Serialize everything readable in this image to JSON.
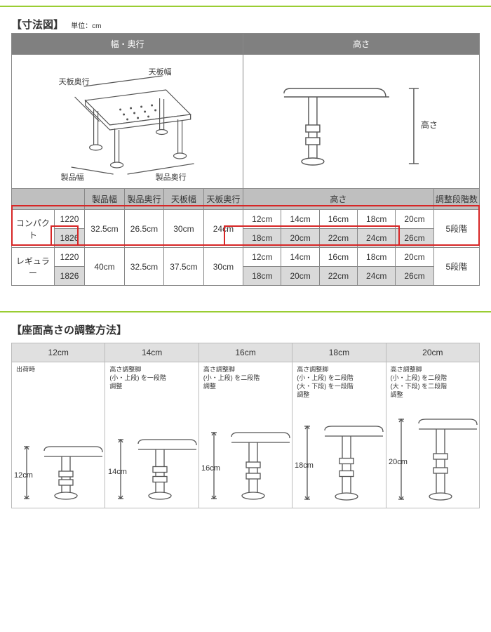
{
  "colors": {
    "accent_green": "#9acd32",
    "header_gray": "#808080",
    "subheader_gray": "#bfbfbf",
    "alt_gray": "#d9d9d9",
    "highlight_red": "#d72626",
    "border": "#888888",
    "text": "#333333"
  },
  "section1": {
    "title": "【寸法図】",
    "unit": "単位：cm",
    "top_headers": [
      "幅・奥行",
      "高さ"
    ],
    "diagram_width_labels": {
      "top_depth": "天板奥行",
      "top_width": "天板幅",
      "prod_width": "製品幅",
      "prod_depth": "製品奥行"
    },
    "diagram_height_label": "高さ",
    "col_headers": [
      "製品幅",
      "製品奥行",
      "天板幅",
      "天板奥行",
      "高さ",
      "調整段階数"
    ],
    "rows": [
      {
        "name": "コンパクト",
        "variants": [
          {
            "model": "1220",
            "heights": [
              "12cm",
              "14cm",
              "16cm",
              "18cm",
              "20cm"
            ],
            "alt": false
          },
          {
            "model": "1826",
            "heights": [
              "18cm",
              "20cm",
              "22cm",
              "24cm",
              "26cm"
            ],
            "alt": true
          }
        ],
        "dims": [
          "32.5cm",
          "26.5cm",
          "30cm",
          "24cm"
        ],
        "steps": "5段階"
      },
      {
        "name": "レギュラー",
        "variants": [
          {
            "model": "1220",
            "heights": [
              "12cm",
              "14cm",
              "16cm",
              "18cm",
              "20cm"
            ],
            "alt": false
          },
          {
            "model": "1826",
            "heights": [
              "18cm",
              "20cm",
              "22cm",
              "24cm",
              "26cm"
            ],
            "alt": true
          }
        ],
        "dims": [
          "40cm",
          "32.5cm",
          "37.5cm",
          "30cm"
        ],
        "steps": "5段階"
      }
    ]
  },
  "section2": {
    "title": "【座面高さの調整方法】",
    "panels": [
      {
        "h": "12cm",
        "desc": "出荷時",
        "legH": 60
      },
      {
        "h": "14cm",
        "desc": "高さ調整脚\n(小・上段) を一段階\n調整",
        "legH": 70
      },
      {
        "h": "16cm",
        "desc": "高さ調整脚\n(小・上段) を二段階\n調整",
        "legH": 80
      },
      {
        "h": "18cm",
        "desc": "高さ調整脚\n(小・上段) を二段階\n(大・下段) を一段階\n調整",
        "legH": 90
      },
      {
        "h": "20cm",
        "desc": "高さ調整脚\n(小・上段) を二段階\n(大・下段) を二段階\n調整",
        "legH": 100
      }
    ]
  }
}
